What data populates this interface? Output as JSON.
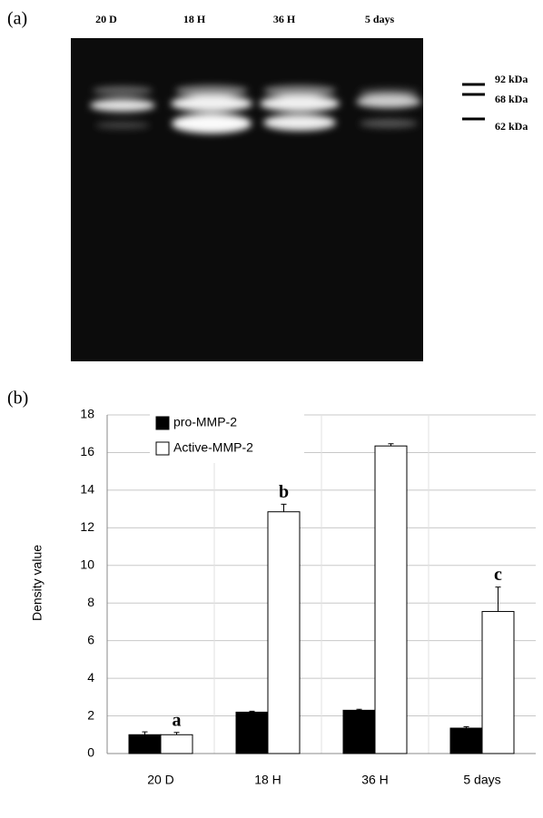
{
  "panels": {
    "a": "(a)",
    "b": "(b)"
  },
  "gel": {
    "lanes": [
      "20 D",
      "18 H",
      "36 H",
      "5 days"
    ],
    "markers": [
      "92 kDa",
      "68 kDa",
      "62 kDa"
    ]
  },
  "chart_data": {
    "type": "bar",
    "ylabel": "Density value",
    "categories": [
      "20 D",
      "18 H",
      "36 H",
      "5 days"
    ],
    "series": [
      {
        "name": "pro-MMP-2",
        "color": "#000000",
        "values": [
          1.0,
          2.2,
          2.3,
          1.35
        ],
        "errors": [
          0.15,
          0.05,
          0.05,
          0.08
        ]
      },
      {
        "name": "Active-MMP-2",
        "color": "#ffffff",
        "values": [
          1.0,
          12.85,
          16.35,
          7.55
        ],
        "errors": [
          0.12,
          0.4,
          0.12,
          1.3
        ],
        "labels": [
          "a",
          "b",
          null,
          "c"
        ]
      }
    ],
    "ylim": [
      0,
      18
    ],
    "yticks": [
      0,
      2,
      4,
      6,
      8,
      10,
      12,
      14,
      16,
      18
    ],
    "grid": true,
    "legend": "top-left"
  }
}
